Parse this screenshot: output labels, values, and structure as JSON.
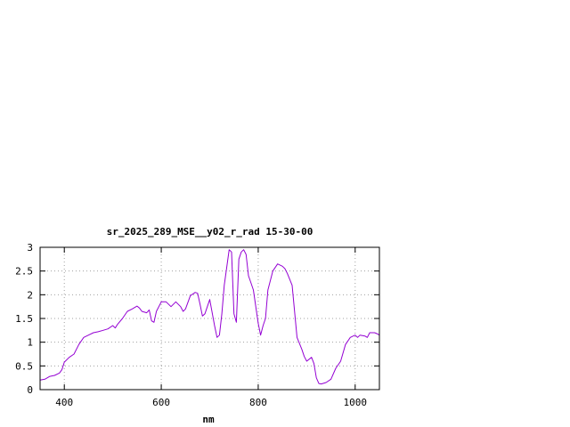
{
  "chart_data": {
    "type": "line",
    "title": "sr_2025_289_MSE__y02_r_rad 15-30-00",
    "xlabel": "nm",
    "ylabel": "",
    "xlim": [
      350,
      1050
    ],
    "ylim": [
      0,
      3
    ],
    "x_ticks": [
      400,
      600,
      800,
      1000
    ],
    "y_ticks": [
      0,
      0.5,
      1,
      1.5,
      2,
      2.5,
      3
    ],
    "x_tick_labels": [
      "400",
      "600",
      "800",
      "1000"
    ],
    "y_tick_labels": [
      "0",
      "0.5",
      "1",
      "1.5",
      "2",
      "2.5",
      "3"
    ],
    "grid": true,
    "line_color": "#9400d3",
    "series": [
      {
        "x": [
          350,
          360,
          370,
          380,
          390,
          395,
          400,
          410,
          420,
          430,
          440,
          450,
          460,
          470,
          480,
          490,
          500,
          505,
          510,
          520,
          530,
          540,
          550,
          555,
          560,
          570,
          575,
          580,
          585,
          590,
          600,
          610,
          620,
          630,
          640,
          645,
          650,
          660,
          670,
          675,
          680,
          685,
          690,
          700,
          710,
          715,
          720,
          725,
          730,
          740,
          745,
          750,
          755,
          760,
          765,
          770,
          775,
          780,
          785,
          790,
          800,
          805,
          810,
          815,
          820,
          830,
          840,
          850,
          855,
          860,
          870,
          880,
          890,
          895,
          900,
          910,
          915,
          920,
          925,
          930,
          940,
          950,
          960,
          970,
          980,
          990,
          1000,
          1005,
          1010,
          1020,
          1025,
          1030,
          1040,
          1045,
          1050
        ],
        "y": [
          0.2,
          0.22,
          0.28,
          0.3,
          0.35,
          0.42,
          0.58,
          0.68,
          0.75,
          0.95,
          1.1,
          1.15,
          1.2,
          1.22,
          1.25,
          1.28,
          1.35,
          1.3,
          1.38,
          1.5,
          1.65,
          1.7,
          1.76,
          1.72,
          1.65,
          1.62,
          1.68,
          1.45,
          1.42,
          1.65,
          1.85,
          1.85,
          1.75,
          1.85,
          1.75,
          1.65,
          1.7,
          1.98,
          2.05,
          2.03,
          1.8,
          1.55,
          1.6,
          1.9,
          1.35,
          1.1,
          1.15,
          1.6,
          2.2,
          2.95,
          2.9,
          1.6,
          1.42,
          2.75,
          2.9,
          2.95,
          2.85,
          2.4,
          2.25,
          2.1,
          1.4,
          1.15,
          1.35,
          1.5,
          2.1,
          2.5,
          2.65,
          2.6,
          2.55,
          2.45,
          2.2,
          1.1,
          0.85,
          0.7,
          0.6,
          0.68,
          0.55,
          0.25,
          0.13,
          0.12,
          0.15,
          0.22,
          0.45,
          0.6,
          0.95,
          1.1,
          1.15,
          1.1,
          1.15,
          1.13,
          1.1,
          1.2,
          1.2,
          1.18,
          1.15
        ]
      }
    ]
  }
}
